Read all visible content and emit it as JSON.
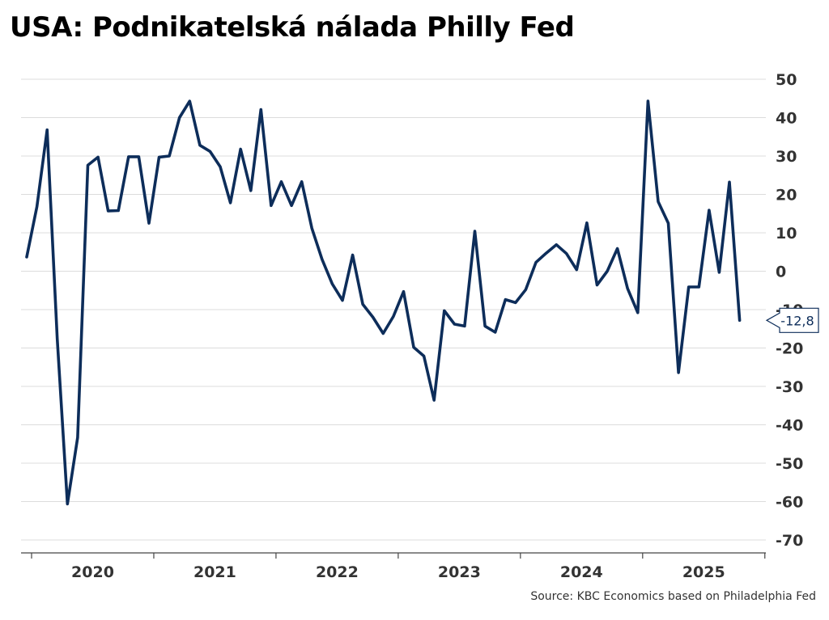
{
  "chart_data": {
    "type": "line",
    "title": "USA: Podnikatelská nálada Philly Fed",
    "source": "Source: KBC Economics based on Philadelphia Fed",
    "xlabel": "",
    "ylabel": "",
    "ylim": [
      -70,
      50
    ],
    "yticks": [
      50,
      40,
      30,
      20,
      10,
      0,
      -10,
      -20,
      -30,
      -40,
      -50,
      -60,
      -70
    ],
    "ytick_labels": [
      "50",
      "40",
      "30",
      "20",
      "10",
      "0",
      "-10",
      "-20",
      "-30",
      "-40",
      "-50",
      "-60",
      "-70"
    ],
    "y_axis_position": "right",
    "grid": true,
    "x_year_labels": [
      "2020",
      "2021",
      "2022",
      "2023",
      "2024",
      "2025"
    ],
    "x_start": "2019-11",
    "last_value_label": "-12,8",
    "series": [
      {
        "name": "Philly Fed",
        "color": "#0d2d5a",
        "values": [
          3.7,
          16.8,
          36.8,
          -17.6,
          -60.6,
          -43.3,
          27.6,
          29.7,
          15.7,
          15.8,
          29.8,
          29.8,
          12.5,
          29.7,
          30.0,
          40.0,
          44.3,
          32.8,
          31.2,
          27.2,
          17.8,
          31.8,
          21.0,
          42.1,
          17.1,
          23.3,
          17.1,
          23.3,
          11.2,
          3.1,
          -3.3,
          -7.6,
          4.2,
          -8.6,
          -12.0,
          -16.2,
          -11.8,
          -5.3,
          -19.8,
          -22.1,
          -33.6,
          -10.3,
          -13.8,
          -14.3,
          10.4,
          -14.3,
          -15.9,
          -7.4,
          -8.2,
          -4.8,
          2.3,
          4.7,
          6.9,
          4.6,
          0.4,
          12.6,
          -3.6,
          0.0,
          5.9,
          -4.5,
          -10.8,
          44.3,
          18.1,
          12.5,
          -26.4,
          -4.1,
          -4.1,
          15.9,
          -0.3,
          23.2,
          -12.8
        ]
      }
    ]
  }
}
